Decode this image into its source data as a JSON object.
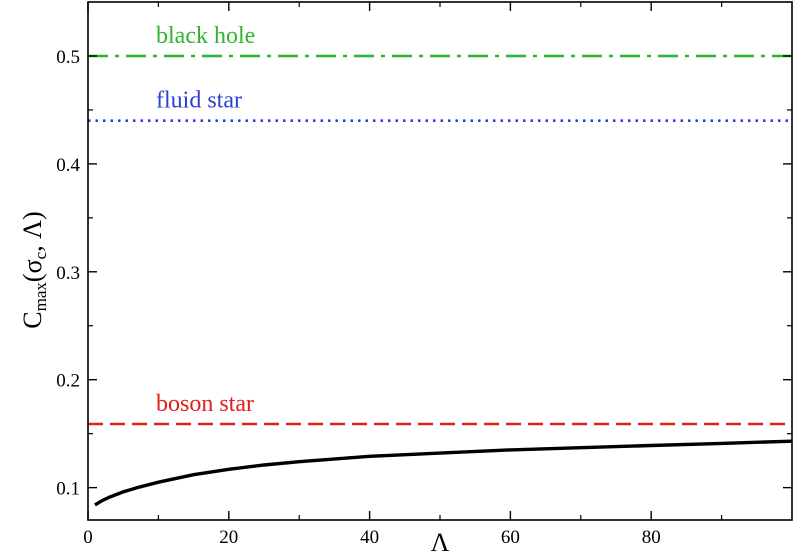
{
  "chart_data": {
    "type": "line",
    "xlabel": "Λ",
    "ylabel": {
      "main": "C",
      "subscript": "max",
      "paren_open": "(σ",
      "sub_c": "c",
      "rest": ", Λ)"
    },
    "xlim": [
      0,
      100
    ],
    "ylim": [
      0.07,
      0.55
    ],
    "x_ticks": [
      0,
      20,
      40,
      60,
      80
    ],
    "x_tick_labels": [
      "0",
      "20",
      "40",
      "60",
      "80"
    ],
    "y_ticks": [
      0.1,
      0.2,
      0.3,
      0.4,
      0.5
    ],
    "y_tick_labels": [
      "0.1",
      "0.2",
      "0.3",
      "0.4",
      "0.5"
    ],
    "grid": false,
    "series": [
      {
        "name": "black hole",
        "style": "dash-dot",
        "color": "#2fb52f",
        "x": [
          0,
          100
        ],
        "y": [
          0.5,
          0.5
        ]
      },
      {
        "name": "fluid star",
        "style": "dotted",
        "color": "#2a3fd6",
        "x": [
          0,
          100
        ],
        "y": [
          0.44,
          0.44
        ]
      },
      {
        "name": "boson star",
        "style": "dashed",
        "color": "#e0201c",
        "x": [
          0,
          100
        ],
        "y": [
          0.159,
          0.159
        ]
      },
      {
        "name": "",
        "style": "solid",
        "color": "#000000",
        "x": [
          1,
          2,
          3,
          5,
          7,
          10,
          15,
          20,
          25,
          30,
          40,
          50,
          60,
          70,
          80,
          90,
          100
        ],
        "y": [
          0.084,
          0.088,
          0.091,
          0.096,
          0.1,
          0.105,
          0.112,
          0.117,
          0.121,
          0.124,
          0.129,
          0.132,
          0.135,
          0.137,
          0.139,
          0.141,
          0.143
        ]
      }
    ]
  }
}
